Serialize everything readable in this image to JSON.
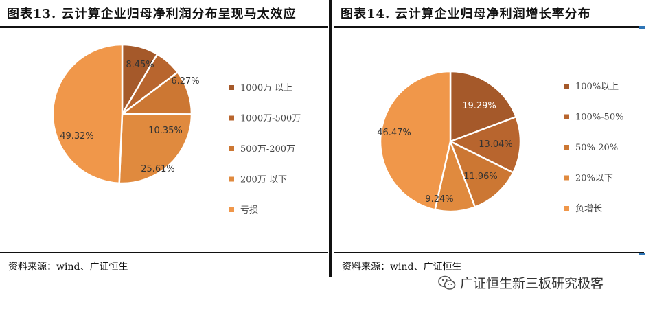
{
  "left_panel": {
    "title": "图表13.  云计算企业归母净利润分布呈现马太效应",
    "source": "资料来源：wind、广证恒生"
  },
  "right_panel": {
    "title": "图表14.  云计算企业归母净利润增长率分布",
    "source": "资料来源：wind、广证恒生"
  },
  "watermark": {
    "text": "广证恒生新三板研究极客",
    "icon": "wechat-icon"
  },
  "accent_color": "#2e75b6",
  "chart_data": [
    {
      "type": "pie",
      "title": "",
      "categories": [
        "1000万以上",
        "1000万-500万",
        "500万-200万",
        "200万以下",
        "亏损"
      ],
      "legend_labels": [
        "1000万 以上",
        "1000万-500万",
        "500万-200万",
        "200万 以下",
        "亏损"
      ],
      "values": [
        8.45,
        6.27,
        10.35,
        25.61,
        49.32
      ],
      "labels": [
        "8.45%",
        "6.27%",
        "10.35%",
        "25.61%",
        "49.32%"
      ],
      "colors": [
        "#a5592a",
        "#b8652e",
        "#cc7733",
        "#e08a3e",
        "#f0974a"
      ],
      "legend_position": "right"
    },
    {
      "type": "pie",
      "title": "",
      "categories": [
        "100%以上",
        "100%-50%",
        "50%-20%",
        "20%以下",
        "负增长"
      ],
      "legend_labels": [
        "100%以上",
        "100%-50%",
        "50%-20%",
        "20%以下",
        "负增长"
      ],
      "values": [
        19.29,
        13.04,
        11.96,
        9.24,
        46.47
      ],
      "labels": [
        "19.29%",
        "13.04%",
        "11.96%",
        "9.24%",
        "46.47%"
      ],
      "colors": [
        "#a5592a",
        "#b8652e",
        "#cc7733",
        "#e08a3e",
        "#f0974a"
      ],
      "legend_position": "right"
    }
  ]
}
